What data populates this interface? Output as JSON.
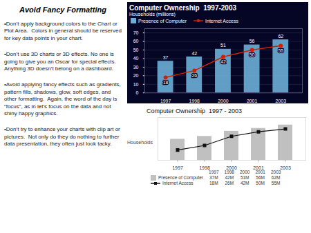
{
  "title": "Avoid Fancy Formatting",
  "annotations": [
    "•Don’t apply background colors to the Chart or Plot Area.  Colors in general should be reserved for key data points in your chart.",
    "•Don’t use 3D charts or 3D effects. No one is going to give you an Oscar for special effects.  Anything 3D doesn’t belong on a dashboard.",
    "•Avoid applying fancy effects such as gradients, pattern fills, shadows, glow, soft edges, and other formatting.  Again, the word of the day is “focus”, as in let’s focus on the data and not shiny happy graphics.",
    "•Don’t try to enhance your charts with clip art or pictures.  Not only do they do nothing to further data presentation, they often just look tacky."
  ],
  "chart_data": [
    {
      "type": "bar",
      "title": "Computer Ownership  1997-2003",
      "subtitle": "Households (millions)",
      "categories": [
        "1997",
        "1998",
        "2000",
        "2001",
        "2003"
      ],
      "series": [
        {
          "name": "Presence of Computer",
          "type": "bar",
          "color": "#6baed6",
          "values": [
            37,
            42,
            51,
            56,
            62
          ]
        },
        {
          "name": "Internet Access",
          "type": "line",
          "color": "#cc2200",
          "marker": "circle",
          "values": [
            18,
            26,
            42,
            50,
            55
          ]
        }
      ],
      "ylim": [
        0,
        75
      ],
      "yticks": [
        0,
        10,
        20,
        30,
        40,
        50,
        60,
        70
      ],
      "grid": true,
      "legend": "top",
      "data_labels": true
    },
    {
      "type": "bar",
      "title": "Computer Ownership  1997 - 2003",
      "ylabel": "Households",
      "categories": [
        "1997",
        "1998",
        "2000",
        "2001",
        "2003"
      ],
      "series": [
        {
          "name": "Presence of Computer",
          "type": "bar",
          "color": "#c0c0c0",
          "values": [
            37,
            42,
            51,
            56,
            62
          ],
          "value_labels": [
            "37M",
            "42M",
            "51M",
            "56M",
            "62M"
          ]
        },
        {
          "name": "Internet Access",
          "type": "line",
          "color": "#111111",
          "marker": "square",
          "values": [
            18,
            26,
            42,
            50,
            55
          ],
          "value_labels": [
            "18M",
            "26M",
            "42M",
            "50M",
            "55M"
          ]
        }
      ],
      "ylim": [
        0,
        75
      ],
      "tick_labels": "x",
      "legend": "bottom",
      "data_labels": true
    }
  ]
}
